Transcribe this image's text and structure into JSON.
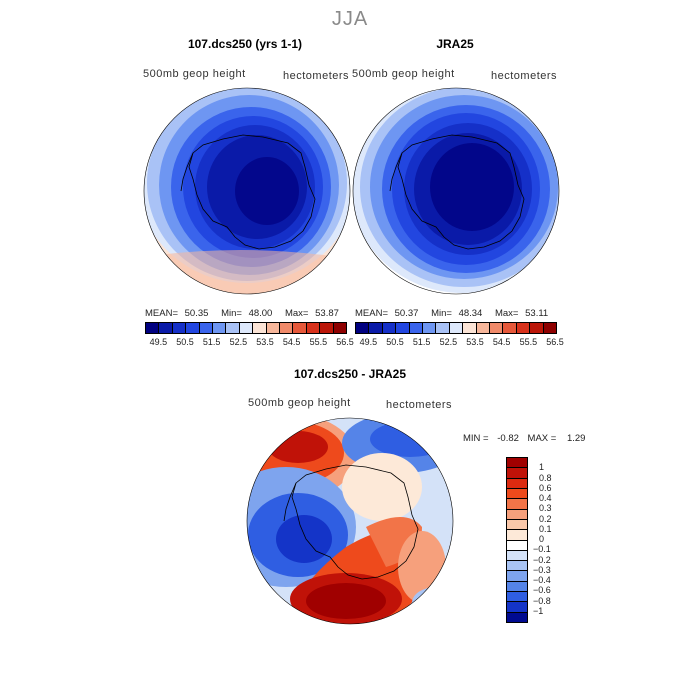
{
  "season": "JJA",
  "panels": [
    {
      "title": "107.dcs250 (yrs 1-1)",
      "field_label": "500mb geop height",
      "units_label": "hectometers",
      "stats": {
        "mean_label": "MEAN=",
        "mean": "50.35",
        "min_label": "Min=",
        "min": "48.00",
        "max_label": "Max=",
        "max": "53.87"
      }
    },
    {
      "title": "JRA25",
      "field_label": "500mb geop height",
      "units_label": "hectometers",
      "stats": {
        "mean_label": "MEAN=",
        "mean": "50.37",
        "min_label": "Min=",
        "min": "48.34",
        "max_label": "Max=",
        "max": "53.11"
      }
    }
  ],
  "abs_colorbar": {
    "tick_labels": [
      "49.5",
      "50.5",
      "51.5",
      "52.5",
      "53.5",
      "54.5",
      "55.5",
      "56.5"
    ],
    "colors": [
      "#000080",
      "#0a1aa8",
      "#1530c8",
      "#2246e0",
      "#3a64ec",
      "#6e96f2",
      "#a9c2f6",
      "#dde8fb",
      "#fbe4d6",
      "#f7b79b",
      "#f08a6a",
      "#e6583a",
      "#d8321c",
      "#bb1608",
      "#8e0000"
    ]
  },
  "diff": {
    "title": "107.dcs250 - JRA25",
    "field_label": "500mb geop height",
    "units_label": "hectometers",
    "min_label": "MIN =",
    "min": "-0.82",
    "max_label": "MAX =",
    "max": "1.29",
    "levels": [
      "1",
      "0.8",
      "0.6",
      "0.4",
      "0.3",
      "0.2",
      "0.1",
      "0",
      "−0.1",
      "−0.2",
      "−0.3",
      "−0.4",
      "−0.6",
      "−0.8",
      "−1"
    ],
    "colors": [
      "#a00000",
      "#c01208",
      "#dc2a10",
      "#ee4a1c",
      "#f27448",
      "#f6a07c",
      "#fac8aa",
      "#fde9d8",
      "#ffffff",
      "#d4e2f8",
      "#a9c4f4",
      "#7ea4ee",
      "#5584e8",
      "#2f5ee2",
      "#1434c8",
      "#000a90"
    ]
  }
}
